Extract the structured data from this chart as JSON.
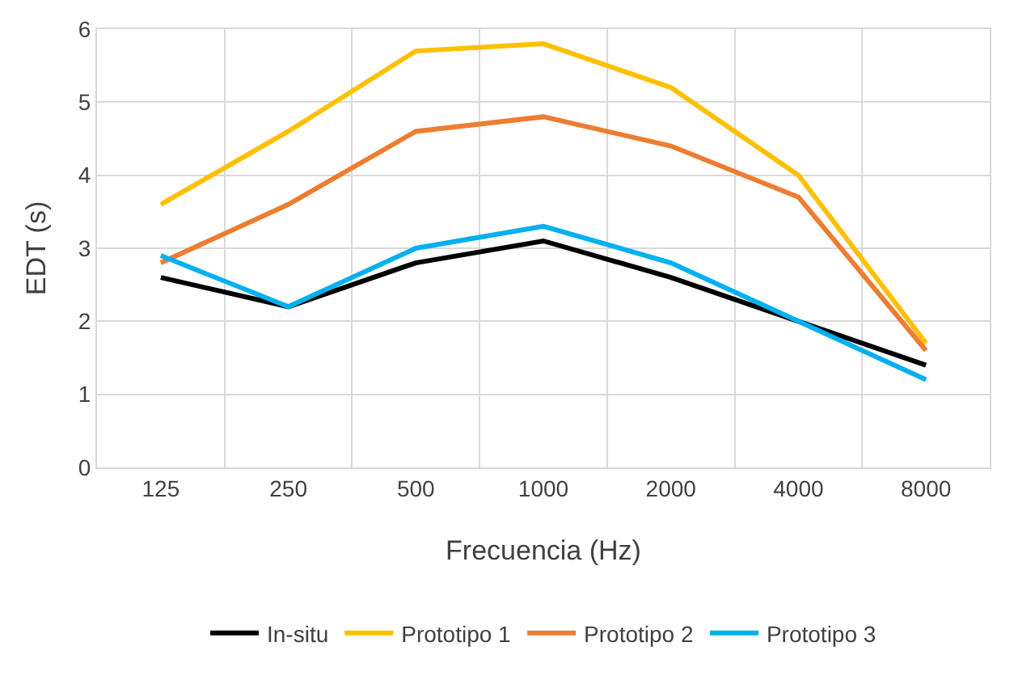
{
  "chart_data": {
    "type": "line",
    "xlabel": "Frecuencia (Hz)",
    "ylabel": "EDT (s)",
    "categories": [
      "125",
      "250",
      "500",
      "1000",
      "2000",
      "4000",
      "8000"
    ],
    "series": [
      {
        "name": "In-situ",
        "color": "#000000",
        "values": [
          2.6,
          2.2,
          2.8,
          3.1,
          2.6,
          2.0,
          1.4
        ]
      },
      {
        "name": "Prototipo 1",
        "color": "#ffc000",
        "values": [
          3.6,
          4.6,
          5.7,
          5.8,
          5.2,
          4.0,
          1.7
        ]
      },
      {
        "name": "Prototipo 2",
        "color": "#ed7d31",
        "values": [
          2.8,
          3.6,
          4.6,
          4.8,
          4.4,
          3.7,
          1.6
        ]
      },
      {
        "name": "Prototipo 3",
        "color": "#00b0f0",
        "values": [
          2.9,
          2.2,
          3.0,
          3.3,
          2.8,
          2.0,
          1.2
        ]
      }
    ],
    "ylim": [
      0,
      6
    ],
    "yticks": [
      0,
      1,
      2,
      3,
      4,
      5,
      6
    ],
    "grid": true,
    "legend": "bottom",
    "marker": "none",
    "line_style": "solid"
  }
}
